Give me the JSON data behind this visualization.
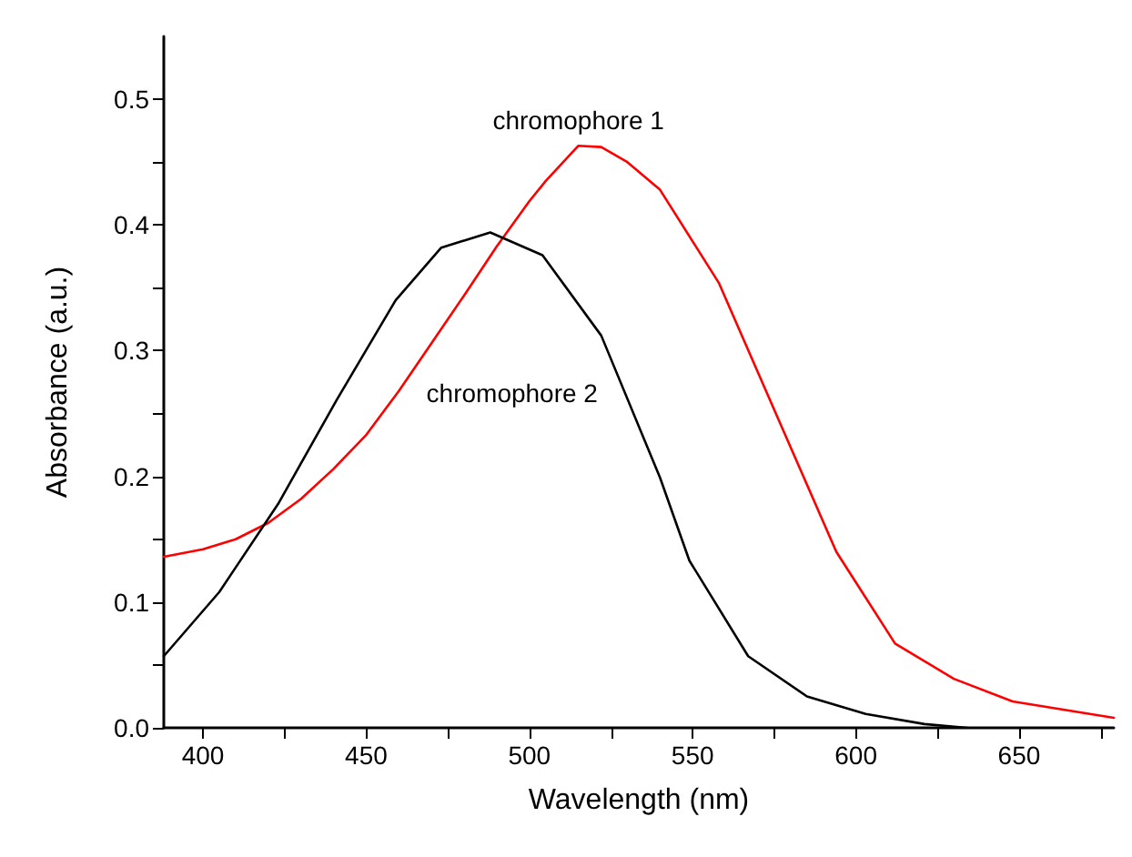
{
  "chart_data": {
    "type": "line",
    "xlabel": "Wavelength (nm)",
    "ylabel": "Absorbance (a.u.)",
    "xlim": [
      388,
      679
    ],
    "ylim": [
      0,
      0.55
    ],
    "xticks": [
      400,
      {
        "value": 425,
        "label": null
      },
      450,
      {
        "value": 475,
        "label": null
      },
      500,
      {
        "value": 525,
        "label": null
      },
      550,
      {
        "value": 575,
        "label": null
      },
      600,
      {
        "value": 625,
        "label": null
      },
      650,
      {
        "value": 675,
        "label": null
      }
    ],
    "yticks": [
      {
        "value": 0,
        "label": "0.0"
      },
      {
        "value": 0.05,
        "label": null
      },
      {
        "value": 0.1,
        "label": "0.1"
      },
      {
        "value": 0.15,
        "label": null
      },
      {
        "value": 0.2,
        "label": "0.2"
      },
      {
        "value": 0.25,
        "label": null
      },
      {
        "value": 0.3,
        "label": "0.3"
      },
      {
        "value": 0.35,
        "label": null
      },
      {
        "value": 0.4,
        "label": "0.4"
      },
      {
        "value": 0.45,
        "label": null
      },
      {
        "value": 0.5,
        "label": "0.5"
      }
    ],
    "grid": false,
    "legend": false,
    "marker": "none",
    "line_style": "solid",
    "series": [
      {
        "name": "chromophore 1",
        "color": "#ff0000",
        "x": [
          388,
          400,
          410,
          420,
          430,
          440,
          450,
          460,
          470,
          480,
          490,
          500,
          505,
          515,
          522,
          530,
          540,
          558,
          576,
          594,
          612,
          630,
          648,
          679
        ],
        "values": [
          0.136,
          0.142,
          0.15,
          0.163,
          0.182,
          0.206,
          0.233,
          0.268,
          0.306,
          0.344,
          0.383,
          0.419,
          0.435,
          0.463,
          0.462,
          0.45,
          0.428,
          0.354,
          0.247,
          0.14,
          0.067,
          0.039,
          0.021,
          0.008
        ]
      },
      {
        "name": "chromophore 2",
        "color": "#000000",
        "x": [
          388,
          405,
          423,
          441,
          459,
          473,
          488,
          504,
          522,
          540,
          549,
          567,
          585,
          603,
          621,
          634
        ],
        "values": [
          0.057,
          0.108,
          0.178,
          0.261,
          0.34,
          0.382,
          0.394,
          0.376,
          0.312,
          0.199,
          0.133,
          0.057,
          0.025,
          0.011,
          0.003,
          0
        ]
      }
    ]
  }
}
